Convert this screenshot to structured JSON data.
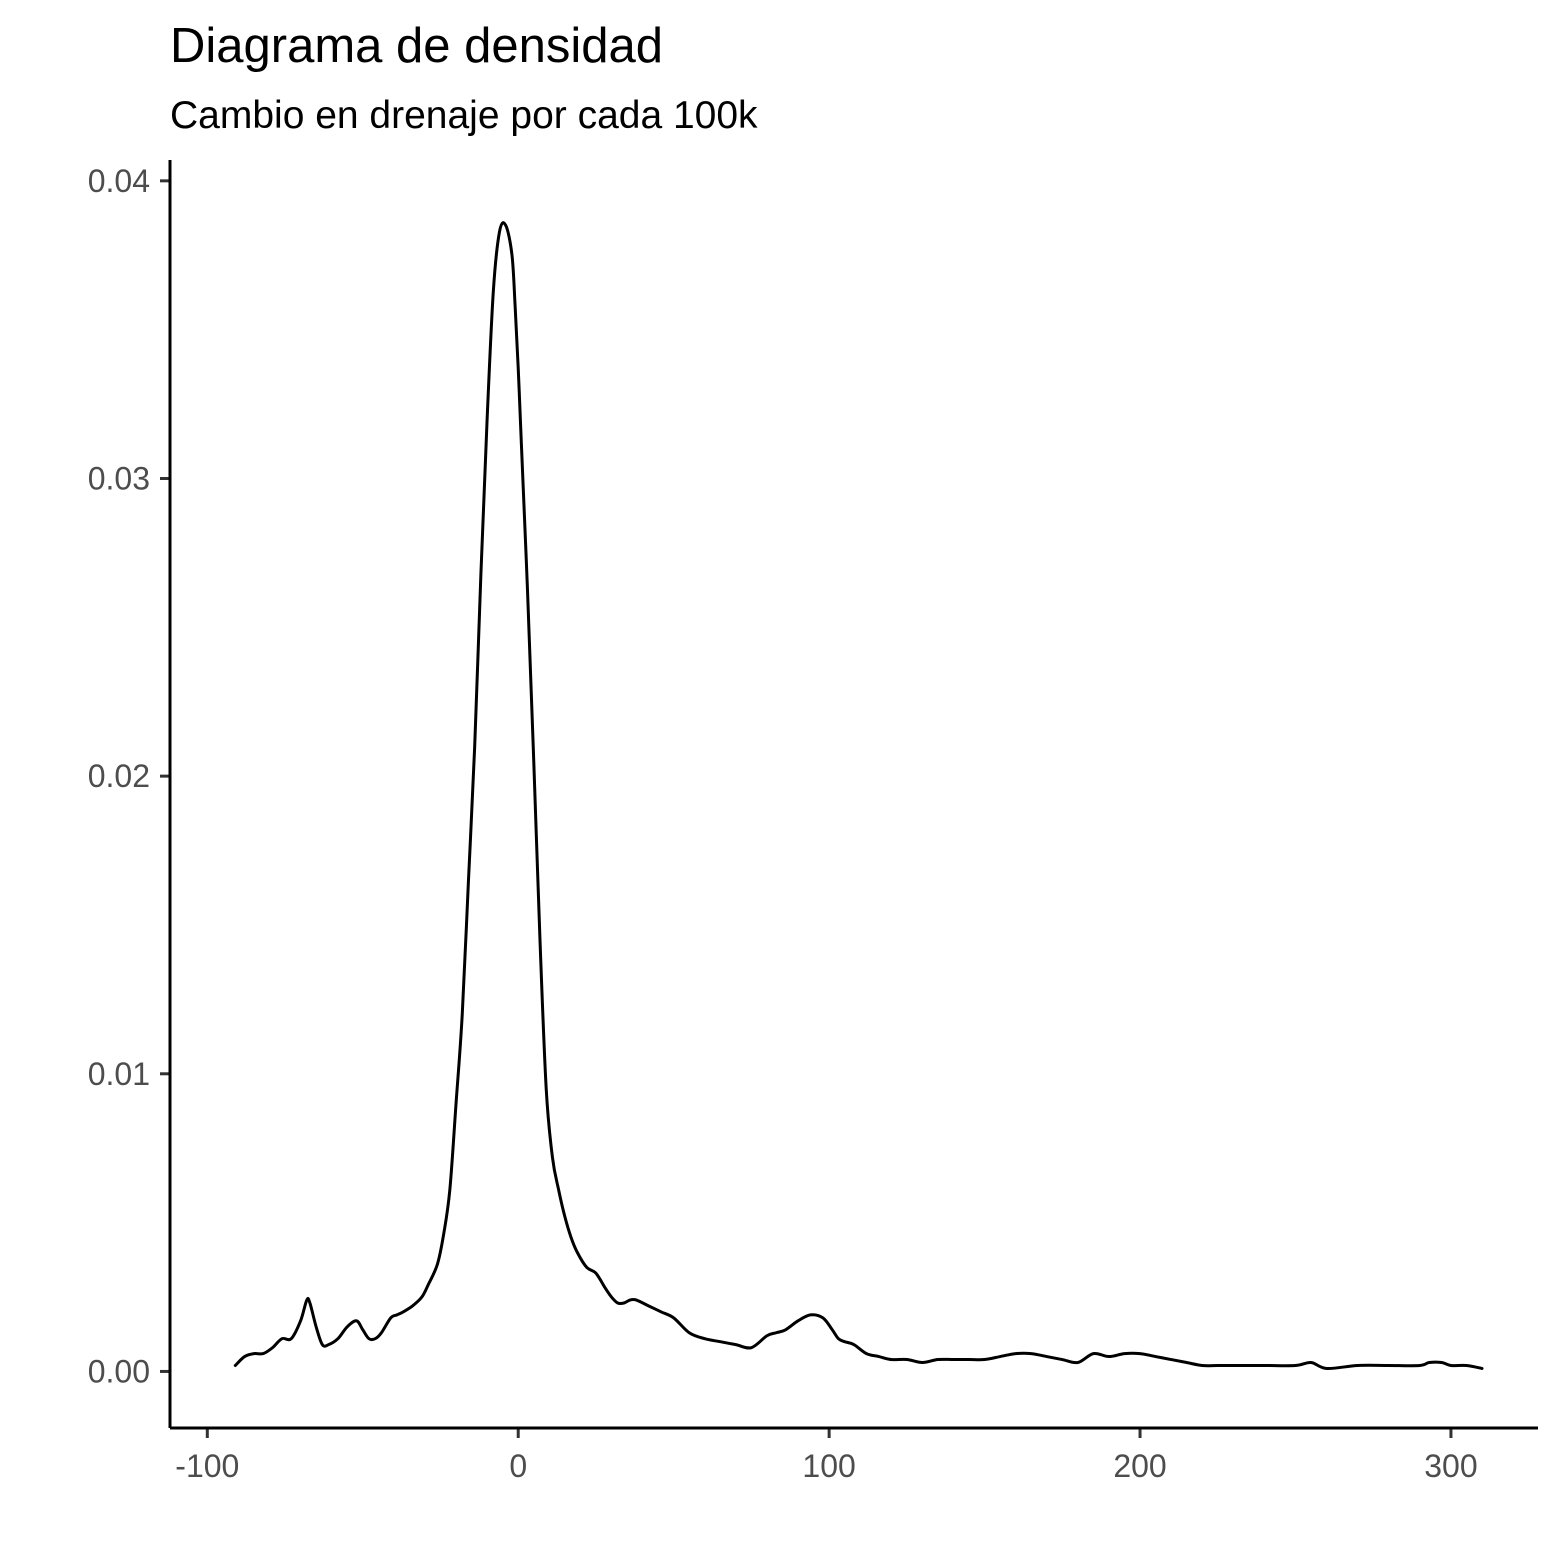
{
  "chart_data": {
    "type": "line",
    "title": "Diagrama de densidad",
    "subtitle": "Cambio en drenaje por cada 100k",
    "xlabel": "",
    "ylabel": "",
    "xlim": [
      -112,
      328
    ],
    "ylim": [
      -0.0019,
      0.0407
    ],
    "x_ticks": [
      -100,
      0,
      100,
      200,
      300
    ],
    "x_tick_labels": [
      "-100",
      "0",
      "100",
      "200",
      "300"
    ],
    "y_ticks": [
      0,
      0.01,
      0.02,
      0.03,
      0.04
    ],
    "y_tick_labels": [
      "0.00",
      "0.01",
      "0.02",
      "0.03",
      "0.04"
    ],
    "grid": false,
    "line_color": "#000000",
    "series": [
      {
        "x": [
          -91,
          -88,
          -85,
          -82,
          -79,
          -76,
          -73,
          -70,
          -68,
          -67,
          -65,
          -63,
          -61,
          -58,
          -55,
          -52,
          -50,
          -48,
          -46,
          -44,
          -41,
          -39,
          -37,
          -34,
          -31,
          -29,
          -26,
          -24,
          -22,
          -20,
          -18,
          -16,
          -14,
          -12,
          -10,
          -8,
          -6,
          -4,
          -2,
          -1,
          0,
          1,
          3,
          5,
          7,
          9,
          11,
          13,
          15,
          17,
          19,
          22,
          25,
          28,
          30,
          32,
          34,
          36,
          38,
          42,
          46,
          50,
          55,
          60,
          65,
          70,
          75,
          80,
          83,
          86,
          90,
          94,
          98,
          101,
          103,
          105,
          108,
          112,
          116,
          120,
          125,
          130,
          135,
          140,
          145,
          150,
          155,
          160,
          165,
          170,
          175,
          180,
          185,
          190,
          195,
          200,
          205,
          210,
          215,
          220,
          225,
          230,
          240,
          250,
          255,
          260,
          270,
          280,
          290,
          293,
          297,
          300,
          305,
          310
        ],
        "y": [
          0.0002,
          0.0005,
          0.0006,
          0.0006,
          0.0008,
          0.0011,
          0.0011,
          0.0017,
          0.0024,
          0.0023,
          0.0015,
          0.0009,
          0.0009,
          0.0011,
          0.0015,
          0.0017,
          0.0014,
          0.0011,
          0.0011,
          0.0013,
          0.0018,
          0.0019,
          0.002,
          0.0022,
          0.0025,
          0.0029,
          0.0036,
          0.0046,
          0.0061,
          0.009,
          0.012,
          0.0165,
          0.021,
          0.0268,
          0.032,
          0.0363,
          0.0383,
          0.0385,
          0.0375,
          0.0358,
          0.0337,
          0.0312,
          0.0262,
          0.0205,
          0.0145,
          0.0095,
          0.0072,
          0.0061,
          0.0052,
          0.0045,
          0.004,
          0.0035,
          0.0033,
          0.0028,
          0.0025,
          0.0023,
          0.0023,
          0.0024,
          0.0024,
          0.0022,
          0.002,
          0.0018,
          0.0013,
          0.0011,
          0.001,
          0.0009,
          0.0008,
          0.0012,
          0.0013,
          0.0014,
          0.0017,
          0.0019,
          0.0018,
          0.0014,
          0.0011,
          0.001,
          0.0009,
          0.0006,
          0.0005,
          0.0004,
          0.0004,
          0.0003,
          0.0004,
          0.0004,
          0.0004,
          0.0004,
          0.0005,
          0.0006,
          0.0006,
          0.0005,
          0.0004,
          0.0003,
          0.0006,
          0.0005,
          0.0006,
          0.0006,
          0.0005,
          0.0004,
          0.0003,
          0.0002,
          0.0002,
          0.0002,
          0.0002,
          0.0002,
          0.0003,
          0.0001,
          0.0002,
          0.0002,
          0.0002,
          0.0003,
          0.0003,
          0.0002,
          0.0002,
          0.0001
        ]
      }
    ]
  }
}
